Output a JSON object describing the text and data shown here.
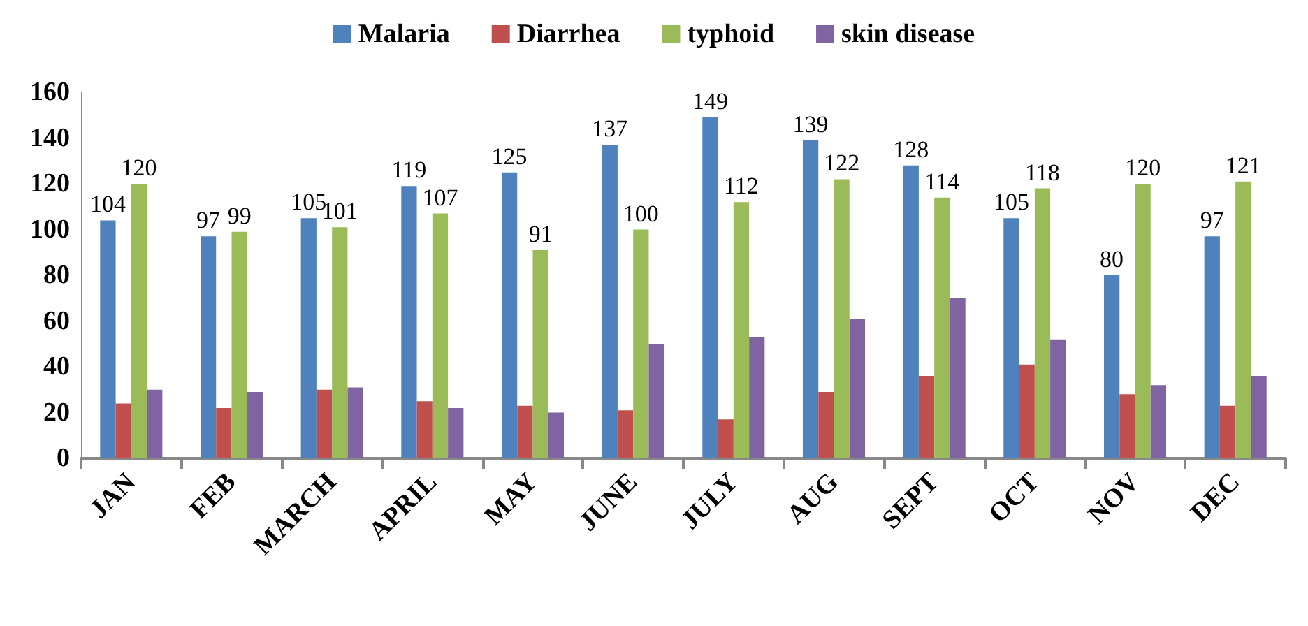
{
  "chart_data": {
    "type": "bar",
    "categories": [
      "JAN",
      "FEB",
      "MARCH",
      "APRIL",
      "MAY",
      "JUNE",
      "JULY",
      "AUG",
      "SEPT",
      "OCT",
      "NOV",
      "DEC"
    ],
    "series": [
      {
        "name": "Malaria",
        "color": "#4f81bd",
        "values": [
          104,
          97,
          105,
          119,
          125,
          137,
          149,
          139,
          128,
          105,
          80,
          97
        ],
        "value_labels": [
          "104",
          "97",
          "105",
          "119",
          "125",
          "137",
          "149",
          "139",
          "128",
          "105",
          "80",
          "97"
        ]
      },
      {
        "name": "Diarrhea",
        "color": "#c0504d",
        "values": [
          24,
          22,
          30,
          25,
          23,
          21,
          17,
          29,
          36,
          41,
          28,
          23
        ]
      },
      {
        "name": "typhoid",
        "color": "#9bbb59",
        "values": [
          120,
          99,
          101,
          107,
          91,
          100,
          112,
          122,
          114,
          118,
          120,
          121
        ],
        "value_labels": [
          "120",
          "99",
          "101",
          "107",
          "91",
          "100",
          "112",
          "122",
          "114",
          "118",
          "120",
          "121"
        ]
      },
      {
        "name": "skin disease",
        "color": "#8064a2",
        "values": [
          30,
          29,
          31,
          22,
          20,
          50,
          53,
          61,
          70,
          52,
          32,
          36
        ]
      }
    ],
    "ylim": [
      0,
      160
    ],
    "yticks": [
      0,
      20,
      40,
      60,
      80,
      100,
      120,
      140,
      160
    ],
    "grid": false,
    "legend": "top"
  }
}
